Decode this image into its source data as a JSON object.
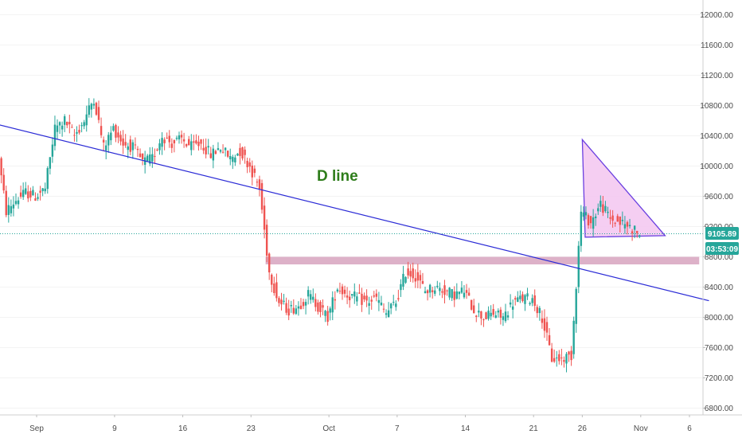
{
  "chart_data": {
    "type": "candlestick",
    "y_ticks": [
      "12000.00",
      "11600.00",
      "11200.00",
      "10800.00",
      "10400.00",
      "10000.00",
      "9600.00",
      "9200.00",
      "8800.00",
      "8400.00",
      "8000.00",
      "7600.00",
      "7200.00",
      "6800.00"
    ],
    "y_tick_values": [
      12000,
      11600,
      11200,
      10800,
      10400,
      10000,
      9600,
      9200,
      8800,
      8400,
      8000,
      7600,
      7200,
      6800
    ],
    "ylim": [
      6700,
      12300
    ],
    "x_ticks": [
      "Sep",
      "9",
      "16",
      "23",
      "Oct",
      "7",
      "14",
      "21",
      "26",
      "Nov",
      "6"
    ],
    "x_tick_days": [
      0,
      8,
      15,
      22,
      30,
      37,
      44,
      51,
      56,
      62,
      67
    ],
    "xlim_days": [
      -4,
      69
    ],
    "last_price": "9105.89",
    "countdown": "03:53:09",
    "annotation": "D line",
    "colors": {
      "up": "#26a69a",
      "down": "#ef5350",
      "trendline": "#2b2bd6",
      "zone": "#d9a9c2",
      "triangle_fill": "#f3c6f0",
      "triangle_edge": "#6a3fe0",
      "price_badge": "#26a69a",
      "price_line": "#26a69a"
    },
    "trendline": {
      "from": {
        "day": -4,
        "price": 10550
      },
      "to": {
        "day": 69,
        "price": 8220
      }
    },
    "support_zone": {
      "day_from": 23.5,
      "day_to": 68,
      "price_low": 8700,
      "price_high": 8800
    },
    "triangle": [
      {
        "day": 56,
        "price": 10350
      },
      {
        "day": 64.5,
        "price": 9080
      },
      {
        "day": 56.3,
        "price": 9060
      }
    ],
    "price_path": [
      {
        "d": -4,
        "p": 10300
      },
      {
        "d": -3,
        "p": 9400
      },
      {
        "d": -2,
        "p": 9550
      },
      {
        "d": -1,
        "p": 9650
      },
      {
        "d": 0,
        "p": 9600
      },
      {
        "d": 1,
        "p": 9700
      },
      {
        "d": 2,
        "p": 10500
      },
      {
        "d": 3,
        "p": 10600
      },
      {
        "d": 4,
        "p": 10400
      },
      {
        "d": 5,
        "p": 10600
      },
      {
        "d": 6,
        "p": 10900
      },
      {
        "d": 7,
        "p": 10250
      },
      {
        "d": 8,
        "p": 10500
      },
      {
        "d": 9,
        "p": 10300
      },
      {
        "d": 10,
        "p": 10250
      },
      {
        "d": 11,
        "p": 10050
      },
      {
        "d": 12,
        "p": 10100
      },
      {
        "d": 13,
        "p": 10400
      },
      {
        "d": 14,
        "p": 10300
      },
      {
        "d": 15,
        "p": 10350
      },
      {
        "d": 16,
        "p": 10250
      },
      {
        "d": 17,
        "p": 10300
      },
      {
        "d": 18,
        "p": 10150
      },
      {
        "d": 19,
        "p": 10250
      },
      {
        "d": 20,
        "p": 10100
      },
      {
        "d": 21,
        "p": 10200
      },
      {
        "d": 22,
        "p": 10000
      },
      {
        "d": 23,
        "p": 9700
      },
      {
        "d": 24,
        "p": 8600
      },
      {
        "d": 25,
        "p": 8200
      },
      {
        "d": 26,
        "p": 8100
      },
      {
        "d": 27,
        "p": 8150
      },
      {
        "d": 28,
        "p": 8300
      },
      {
        "d": 29,
        "p": 8150
      },
      {
        "d": 30,
        "p": 8000
      },
      {
        "d": 31,
        "p": 8400
      },
      {
        "d": 32,
        "p": 8300
      },
      {
        "d": 33,
        "p": 8250
      },
      {
        "d": 34,
        "p": 8200
      },
      {
        "d": 35,
        "p": 8250
      },
      {
        "d": 36,
        "p": 8050
      },
      {
        "d": 37,
        "p": 8200
      },
      {
        "d": 38,
        "p": 8600
      },
      {
        "d": 39,
        "p": 8550
      },
      {
        "d": 40,
        "p": 8350
      },
      {
        "d": 41,
        "p": 8400
      },
      {
        "d": 42,
        "p": 8350
      },
      {
        "d": 43,
        "p": 8300
      },
      {
        "d": 44,
        "p": 8350
      },
      {
        "d": 45,
        "p": 8100
      },
      {
        "d": 46,
        "p": 8000
      },
      {
        "d": 47,
        "p": 8050
      },
      {
        "d": 48,
        "p": 8000
      },
      {
        "d": 49,
        "p": 8200
      },
      {
        "d": 50,
        "p": 8250
      },
      {
        "d": 51,
        "p": 8250
      },
      {
        "d": 52,
        "p": 8000
      },
      {
        "d": 53,
        "p": 7450
      },
      {
        "d": 54,
        "p": 7450
      },
      {
        "d": 55,
        "p": 7500
      },
      {
        "d": 56,
        "p": 9400
      },
      {
        "d": 57,
        "p": 9250
      },
      {
        "d": 58,
        "p": 9500
      },
      {
        "d": 59,
        "p": 9300
      },
      {
        "d": 60,
        "p": 9250
      },
      {
        "d": 61,
        "p": 9200
      },
      {
        "d": 62,
        "p": 9106
      }
    ]
  }
}
